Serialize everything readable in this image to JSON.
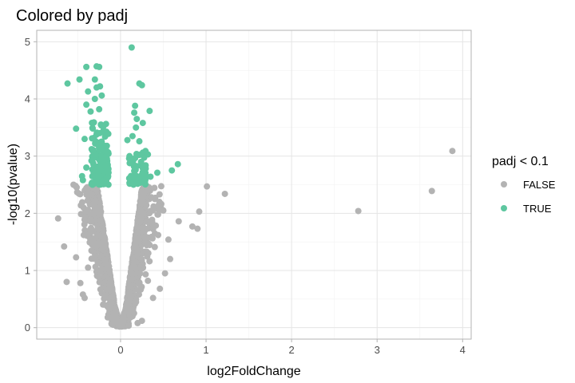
{
  "chart_data": {
    "type": "scatter",
    "title": "Colored by padj",
    "xlabel": "log2FoldChange",
    "ylabel": "-log10(pvalue)",
    "xlim": [
      -0.98,
      4.1
    ],
    "ylim": [
      -0.2,
      5.2
    ],
    "x_ticks": [
      0,
      1,
      2,
      3,
      4
    ],
    "y_ticks": [
      0,
      1,
      2,
      3,
      4,
      5
    ],
    "grid": true,
    "legend": {
      "title": "padj < 0.1",
      "position": "right",
      "entries": [
        {
          "label": "FALSE",
          "color": "#b3b3b3"
        },
        {
          "label": "TRUE",
          "color": "#5ec7a0"
        }
      ]
    },
    "series": [
      {
        "name": "FALSE",
        "color": "#b3b3b3",
        "points": [
          [
            3.88,
            3.09
          ],
          [
            3.64,
            2.39
          ],
          [
            2.78,
            2.04
          ],
          [
            1.22,
            2.34
          ],
          [
            1.01,
            2.47
          ],
          [
            0.92,
            2.03
          ],
          [
            0.84,
            1.77
          ],
          [
            0.9,
            1.73
          ],
          [
            0.68,
            1.86
          ],
          [
            0.56,
            1.54
          ],
          [
            0.58,
            1.2
          ],
          [
            0.52,
            0.95
          ],
          [
            0.46,
            0.68
          ],
          [
            -0.73,
            1.91
          ],
          [
            -0.66,
            1.42
          ],
          [
            -0.63,
            0.8
          ],
          [
            -0.52,
            1.23
          ],
          [
            -0.55,
            2.5
          ],
          [
            -0.47,
            0.78
          ],
          [
            -0.44,
            0.58
          ],
          [
            -0.42,
            0.52
          ],
          [
            0.38,
            0.52
          ],
          [
            0.32,
            0.82
          ],
          [
            0.4,
            1.41
          ],
          [
            0.44,
            1.62
          ],
          [
            0.5,
            2.05
          ],
          [
            0.36,
            2.28
          ],
          [
            -0.4,
            2.44
          ],
          [
            -0.38,
            2.06
          ],
          [
            -0.43,
            1.62
          ],
          [
            -0.38,
            1.05
          ],
          [
            0.25,
            0.12
          ],
          [
            0.2,
            0.08
          ],
          [
            -0.15,
            0.18
          ],
          [
            -0.1,
            0.06
          ]
        ],
        "cloud": {
          "description_excluded": true,
          "samples": 2600,
          "seed": 7
        }
      },
      {
        "name": "TRUE",
        "color": "#5ec7a0",
        "points": [
          [
            0.13,
            4.9
          ],
          [
            -0.28,
            4.57
          ],
          [
            -0.4,
            4.56
          ],
          [
            -0.25,
            4.56
          ],
          [
            -0.62,
            4.27
          ],
          [
            -0.48,
            4.34
          ],
          [
            -0.3,
            4.34
          ],
          [
            0.22,
            4.27
          ],
          [
            0.25,
            4.24
          ],
          [
            -0.24,
            4.22
          ],
          [
            -0.28,
            4.2
          ],
          [
            -0.38,
            4.13
          ],
          [
            -0.22,
            4.06
          ],
          [
            -0.3,
            4.0
          ],
          [
            -0.4,
            3.9
          ],
          [
            0.17,
            3.88
          ],
          [
            0.16,
            3.76
          ],
          [
            -0.25,
            3.82
          ],
          [
            -0.35,
            3.78
          ],
          [
            0.19,
            3.65
          ],
          [
            0.34,
            3.79
          ],
          [
            0.26,
            3.58
          ],
          [
            0.18,
            3.5
          ],
          [
            -0.52,
            3.48
          ],
          [
            -0.32,
            3.58
          ],
          [
            -0.2,
            3.45
          ],
          [
            0.14,
            3.35
          ],
          [
            0.08,
            3.28
          ],
          [
            0.22,
            3.26
          ],
          [
            -0.42,
            3.3
          ],
          [
            -0.26,
            3.22
          ],
          [
            -0.16,
            3.18
          ],
          [
            -0.33,
            3.1
          ],
          [
            0.32,
            3.03
          ],
          [
            0.1,
            2.96
          ],
          [
            0.15,
            2.93
          ],
          [
            0.24,
            2.9
          ],
          [
            0.67,
            2.86
          ],
          [
            0.6,
            2.75
          ],
          [
            0.43,
            2.71
          ],
          [
            0.35,
            2.64
          ],
          [
            -0.22,
            2.98
          ],
          [
            -0.34,
            2.92
          ],
          [
            -0.15,
            2.85
          ],
          [
            -0.4,
            2.8
          ],
          [
            -0.45,
            2.65
          ],
          [
            -0.44,
            2.58
          ],
          [
            -0.26,
            2.7
          ],
          [
            0.16,
            2.74
          ],
          [
            0.26,
            2.79
          ]
        ],
        "cloud": {
          "samples": 170,
          "seed": 11
        }
      }
    ]
  }
}
